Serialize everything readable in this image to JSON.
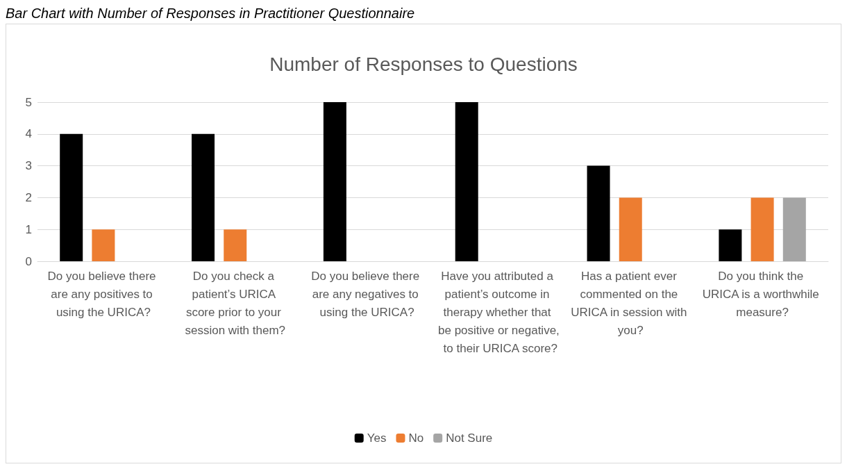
{
  "chart_data": {
    "type": "bar",
    "title": "Number of Responses to Questions",
    "annotations": [
      "Bar Chart with Number of Responses in Practitioner Questionnaire"
    ],
    "categories": [
      "Do you believe there are any positives to using the URICA?",
      "Do you check a patient’s URICA score prior to your session with them?",
      "Do you believe there are any negatives to using the URICA?",
      "Have you attributed a patient’s outcome in therapy whether that be positive or negative, to their URICA score?",
      "Has a patient ever commented on the URICA in session with you?",
      "Do you think the URICA is a worthwhile measure?"
    ],
    "series": [
      {
        "name": "Yes",
        "color": "#000000",
        "values": [
          4,
          4,
          5,
          5,
          3,
          1
        ]
      },
      {
        "name": "No",
        "color": "#ed7d31",
        "values": [
          1,
          1,
          null,
          null,
          2,
          2
        ]
      },
      {
        "name": "Not Sure",
        "color": "#a5a5a5",
        "values": [
          null,
          null,
          null,
          null,
          null,
          2
        ]
      }
    ],
    "ylim": [
      0,
      5
    ],
    "yticks": [
      0,
      1,
      2,
      3,
      4,
      5
    ],
    "grid": "y",
    "legend": "bottom"
  }
}
